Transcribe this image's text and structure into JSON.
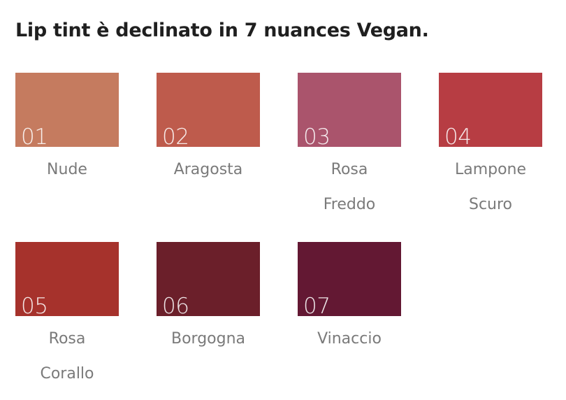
{
  "title": "Lip tint è declinato in 7 nuances Vegan.",
  "shades": [
    {
      "number": "01",
      "name": "Nude",
      "color": "#c57b5f"
    },
    {
      "number": "02",
      "name": "Aragosta",
      "color": "#be5b4c"
    },
    {
      "number": "03",
      "name": "Rosa Freddo",
      "color": "#aa546c"
    },
    {
      "number": "04",
      "name": "Lampone Scuro",
      "color": "#b73d43"
    },
    {
      "number": "05",
      "name": "Rosa Corallo",
      "color": "#a6322c"
    },
    {
      "number": "06",
      "name": "Borgogna",
      "color": "#6b1f2a"
    },
    {
      "number": "07",
      "name": "Vinaccio",
      "color": "#631833"
    }
  ]
}
